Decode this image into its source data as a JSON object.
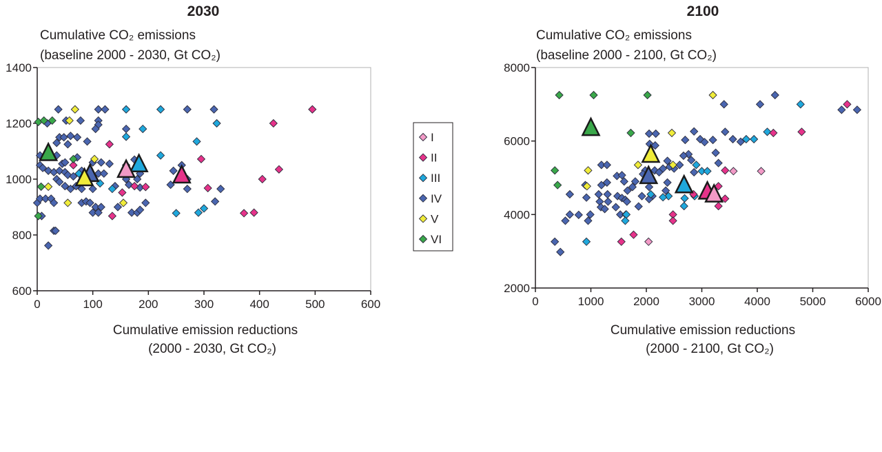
{
  "series_styles": {
    "I": {
      "color": "#f29ac6"
    },
    "II": {
      "color": "#e6338a"
    },
    "III": {
      "color": "#1fa8dc"
    },
    "IV": {
      "color": "#4a66b0"
    },
    "V": {
      "color": "#f0ec3a"
    },
    "VI": {
      "color": "#3aa84a"
    }
  },
  "legend": {
    "placement": "between-charts",
    "entries": [
      "I",
      "II",
      "III",
      "IV",
      "V",
      "VI"
    ]
  },
  "chart_data": [
    {
      "type": "scatter",
      "title": "2030",
      "ylabel": [
        "Cumulative CO₂ emissions",
        "(baseline 2000 - 2030, Gt CO₂)"
      ],
      "xlabel": [
        "Cumulative emission reductions",
        "(2000 - 2030, Gt CO₂)"
      ],
      "xlim": [
        0,
        600
      ],
      "ylim": [
        600,
        1400
      ],
      "xticks": [
        "0",
        "100",
        "200",
        "300",
        "400",
        "500",
        "600"
      ],
      "yticks": [
        "600",
        "800",
        "1000",
        "1200",
        "1400"
      ],
      "series": [
        {
          "name": "IV",
          "points": [
            [
              38,
              1250
            ],
            [
              110,
              1250
            ],
            [
              122,
              1250
            ],
            [
              270,
              1250
            ],
            [
              318,
              1250
            ],
            [
              18,
              1200
            ],
            [
              52,
              1210
            ],
            [
              78,
              1210
            ],
            [
              110,
              1210
            ],
            [
              110,
              1195
            ],
            [
              105,
              1180
            ],
            [
              160,
              1180
            ],
            [
              40,
              1150
            ],
            [
              48,
              1150
            ],
            [
              60,
              1155
            ],
            [
              72,
              1150
            ],
            [
              35,
              1130
            ],
            [
              55,
              1125
            ],
            [
              90,
              1135
            ],
            [
              5,
              1085
            ],
            [
              35,
              1085
            ],
            [
              72,
              1078
            ],
            [
              5,
              1050
            ],
            [
              45,
              1055
            ],
            [
              50,
              1060
            ],
            [
              100,
              1060
            ],
            [
              115,
              1060
            ],
            [
              130,
              1055
            ],
            [
              175,
              1070
            ],
            [
              245,
              1030
            ],
            [
              260,
              1050
            ],
            [
              10,
              1040
            ],
            [
              20,
              1030
            ],
            [
              30,
              1025
            ],
            [
              40,
              1030
            ],
            [
              50,
              1025
            ],
            [
              55,
              1015
            ],
            [
              65,
              1010
            ],
            [
              80,
              1030
            ],
            [
              110,
              1020
            ],
            [
              120,
              1020
            ],
            [
              160,
              1000
            ],
            [
              180,
              1000
            ],
            [
              35,
              1000
            ],
            [
              40,
              990
            ],
            [
              50,
              975
            ],
            [
              60,
              965
            ],
            [
              70,
              975
            ],
            [
              80,
              965
            ],
            [
              100,
              965
            ],
            [
              140,
              975
            ],
            [
              165,
              980
            ],
            [
              185,
              970
            ],
            [
              240,
              980
            ],
            [
              270,
              965
            ],
            [
              330,
              965
            ],
            [
              0,
              915
            ],
            [
              5,
              930
            ],
            [
              15,
              930
            ],
            [
              25,
              930
            ],
            [
              30,
              915
            ],
            [
              80,
              915
            ],
            [
              88,
              920
            ],
            [
              95,
              915
            ],
            [
              105,
              900
            ],
            [
              115,
              900
            ],
            [
              145,
              900
            ],
            [
              170,
              880
            ],
            [
              180,
              880
            ],
            [
              185,
              890
            ],
            [
              195,
              915
            ],
            [
              320,
              920
            ],
            [
              100,
              880
            ],
            [
              110,
              880
            ],
            [
              8,
              868
            ],
            [
              30,
              815
            ],
            [
              33,
              815
            ],
            [
              20,
              762
            ],
            [
              270,
              1000
            ],
            [
              185,
              1020
            ]
          ],
          "mean": [
            95,
            1015
          ]
        },
        {
          "name": "III",
          "points": [
            [
              160,
              1250
            ],
            [
              222,
              1250
            ],
            [
              160,
              1152
            ],
            [
              190,
              1180
            ],
            [
              222,
              1085
            ],
            [
              250,
              878
            ],
            [
              290,
              880
            ],
            [
              287,
              1135
            ],
            [
              300,
              895
            ],
            [
              323,
              1200
            ],
            [
              75,
              1020
            ],
            [
              113,
              985
            ],
            [
              135,
              965
            ]
          ],
          "mean": [
            183,
            1050
          ]
        },
        {
          "name": "II",
          "points": [
            [
              130,
              1125
            ],
            [
              65,
              1050
            ],
            [
              135,
              868
            ],
            [
              153,
              952
            ],
            [
              195,
              972
            ],
            [
              295,
              1072
            ],
            [
              307,
              968
            ],
            [
              372,
              878
            ],
            [
              390,
              880
            ],
            [
              405,
              1000
            ],
            [
              425,
              1200
            ],
            [
              435,
              1035
            ],
            [
              495,
              1250
            ],
            [
              175,
              975
            ]
          ],
          "mean": [
            260,
            1010
          ]
        },
        {
          "name": "I",
          "points": [
            [
              160,
              1050
            ]
          ],
          "mean": [
            160,
            1030
          ]
        },
        {
          "name": "V",
          "points": [
            [
              68,
              1250
            ],
            [
              58,
              1210
            ],
            [
              20,
              973
            ],
            [
              55,
              915
            ],
            [
              103,
              1072
            ],
            [
              155,
              915
            ]
          ],
          "mean": [
            85,
            1000
          ]
        },
        {
          "name": "VI",
          "points": [
            [
              2,
              1205
            ],
            [
              12,
              1210
            ],
            [
              27,
              1210
            ],
            [
              7,
              973
            ],
            [
              2,
              868
            ],
            [
              65,
              1072
            ]
          ],
          "mean": [
            20,
            1090
          ]
        }
      ]
    },
    {
      "type": "scatter",
      "title": "2100",
      "ylabel": [
        "Cumulative CO₂ emissions",
        "(baseline 2000 - 2100, Gt CO₂)"
      ],
      "xlabel": [
        "Cumulative emission reductions",
        "(2000 - 2100, Gt CO₂)"
      ],
      "xlim": [
        0,
        6000
      ],
      "ylim": [
        2000,
        8000
      ],
      "xticks": [
        "0",
        "1000",
        "2000",
        "3000",
        "4000",
        "5000",
        "6000"
      ],
      "yticks": [
        "2000",
        "4000",
        "6000",
        "8000"
      ],
      "series": [
        {
          "name": "IV",
          "points": [
            [
              3400,
              7000
            ],
            [
              4050,
              7000
            ],
            [
              4320,
              7250
            ],
            [
              5520,
              6850
            ],
            [
              5800,
              6850
            ],
            [
              2050,
              6200
            ],
            [
              2170,
              6200
            ],
            [
              2860,
              6260
            ],
            [
              3420,
              6250
            ],
            [
              3200,
              6030
            ],
            [
              2970,
              6050
            ],
            [
              3050,
              5970
            ],
            [
              3560,
              6050
            ],
            [
              3700,
              5980
            ],
            [
              2060,
              5920
            ],
            [
              2160,
              5880
            ],
            [
              2700,
              6030
            ],
            [
              3250,
              5680
            ],
            [
              2760,
              5640
            ],
            [
              2670,
              5600
            ],
            [
              2810,
              5480
            ],
            [
              3300,
              5400
            ],
            [
              2380,
              5460
            ],
            [
              1190,
              5350
            ],
            [
              1290,
              5350
            ],
            [
              2600,
              5350
            ],
            [
              2150,
              5200
            ],
            [
              1980,
              5200
            ],
            [
              2500,
              5250
            ],
            [
              2420,
              5300
            ],
            [
              1940,
              5100
            ],
            [
              2860,
              5150
            ],
            [
              1470,
              5050
            ],
            [
              1560,
              5070
            ],
            [
              2300,
              5250
            ],
            [
              2230,
              5150
            ],
            [
              1600,
              4900
            ],
            [
              1800,
              4900
            ],
            [
              1290,
              4870
            ],
            [
              900,
              4800
            ],
            [
              1190,
              4800
            ],
            [
              2380,
              4870
            ],
            [
              2050,
              4750
            ],
            [
              1750,
              4750
            ],
            [
              1660,
              4650
            ],
            [
              2350,
              4650
            ],
            [
              620,
              4550
            ],
            [
              1140,
              4550
            ],
            [
              1300,
              4550
            ],
            [
              1480,
              4500
            ],
            [
              1560,
              4450
            ],
            [
              1620,
              4400
            ],
            [
              1650,
              4350
            ],
            [
              1920,
              4500
            ],
            [
              2110,
              4500
            ],
            [
              2050,
              4420
            ],
            [
              920,
              4460
            ],
            [
              1160,
              4350
            ],
            [
              1310,
              4350
            ],
            [
              1180,
              4200
            ],
            [
              1250,
              4150
            ],
            [
              1450,
              4200
            ],
            [
              1860,
              4220
            ],
            [
              1530,
              4000
            ],
            [
              1630,
              4000
            ],
            [
              620,
              4000
            ],
            [
              780,
              3990
            ],
            [
              990,
              4000
            ],
            [
              950,
              3830
            ],
            [
              540,
              3830
            ],
            [
              350,
              3260
            ],
            [
              450,
              2980
            ]
          ],
          "mean": [
            2040,
            5020
          ]
        },
        {
          "name": "III",
          "points": [
            [
              4780,
              7000
            ],
            [
              4180,
              6250
            ],
            [
              3800,
              6050
            ],
            [
              3940,
              6050
            ],
            [
              2900,
              5350
            ],
            [
              3000,
              5180
            ],
            [
              3100,
              5180
            ],
            [
              2870,
              4500
            ],
            [
              2400,
              4500
            ],
            [
              2300,
              4470
            ],
            [
              2690,
              4440
            ],
            [
              2680,
              4230
            ],
            [
              1640,
              4000
            ],
            [
              1620,
              3830
            ],
            [
              920,
              3260
            ],
            [
              2080,
              4550
            ]
          ],
          "mean": [
            2680,
            4770
          ]
        },
        {
          "name": "II",
          "points": [
            [
              5620,
              7000
            ],
            [
              4800,
              6250
            ],
            [
              4290,
              6220
            ],
            [
              3420,
              5200
            ],
            [
              3300,
              4770
            ],
            [
              3420,
              4430
            ],
            [
              3300,
              4230
            ],
            [
              2480,
              4000
            ],
            [
              2480,
              3830
            ],
            [
              1770,
              3450
            ],
            [
              1550,
              3260
            ],
            [
              2850,
              4550
            ]
          ],
          "mean": [
            3100,
            4600
          ]
        },
        {
          "name": "I",
          "points": [
            [
              3570,
              5180
            ],
            [
              4070,
              5180
            ],
            [
              2040,
              3260
            ]
          ],
          "mean": [
            3220,
            4520
          ]
        },
        {
          "name": "V",
          "points": [
            [
              3200,
              7250
            ],
            [
              2460,
              6220
            ],
            [
              950,
              5200
            ],
            [
              930,
              4770
            ],
            [
              1850,
              5350
            ],
            [
              2480,
              5350
            ]
          ],
          "mean": [
            2080,
            5600
          ]
        },
        {
          "name": "VI",
          "points": [
            [
              430,
              7250
            ],
            [
              1050,
              7250
            ],
            [
              2020,
              7250
            ],
            [
              350,
              5200
            ],
            [
              400,
              4800
            ],
            [
              1720,
              6220
            ]
          ],
          "mean": [
            1000,
            6330
          ]
        }
      ]
    }
  ]
}
